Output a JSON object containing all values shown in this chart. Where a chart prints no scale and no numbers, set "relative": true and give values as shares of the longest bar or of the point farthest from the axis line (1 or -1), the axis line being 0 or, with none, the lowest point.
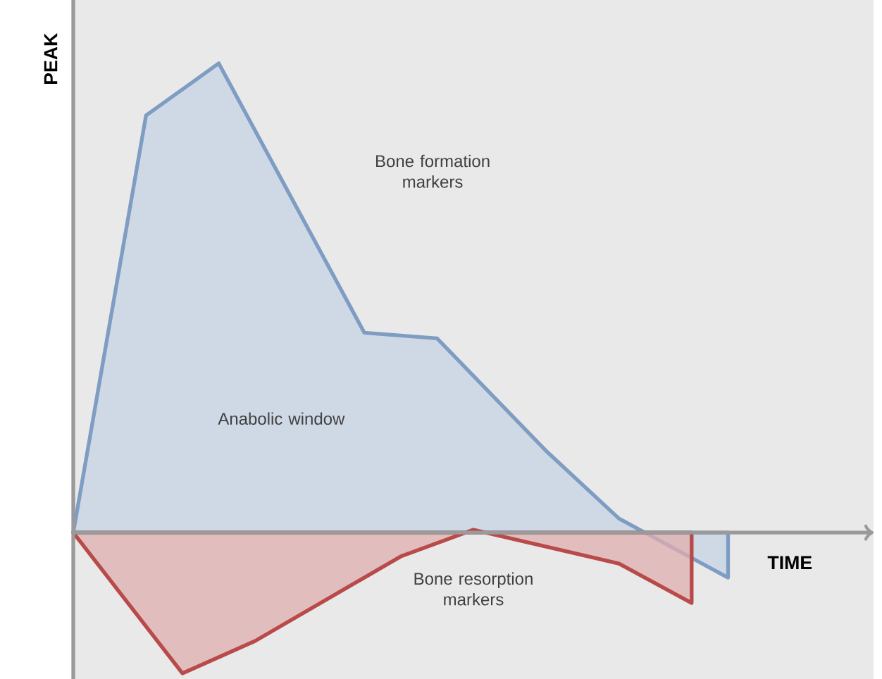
{
  "chart_data": {
    "type": "area",
    "relative": true,
    "xlabel": "TIME",
    "ylabel": "PEAK",
    "categories": [
      null,
      null,
      null,
      null,
      null,
      null,
      null,
      null,
      null,
      null,
      null,
      null,
      null,
      null,
      null,
      null,
      null,
      null,
      null,
      null,
      null,
      null,
      null
    ],
    "series": [
      {
        "color": "#7f9dc3",
        "values": [
          0,
          null,
          0.889,
          null,
          1,
          null,
          null,
          null,
          0.426,
          null,
          0.414,
          null,
          null,
          0.174,
          null,
          0.03,
          null,
          null,
          -0.096,
          null,
          null,
          null,
          null
        ]
      },
      {
        "color": "#b84a4a",
        "values": [
          0,
          null,
          null,
          -0.3,
          null,
          -0.231,
          null,
          null,
          null,
          -0.051,
          null,
          0.006,
          null,
          null,
          null,
          -0.066,
          null,
          -0.15,
          null,
          null,
          null,
          null,
          null
        ]
      }
    ],
    "annotations": [
      "Bone formation markers",
      "Anabolic window",
      "Bone resorption markers"
    ]
  }
}
